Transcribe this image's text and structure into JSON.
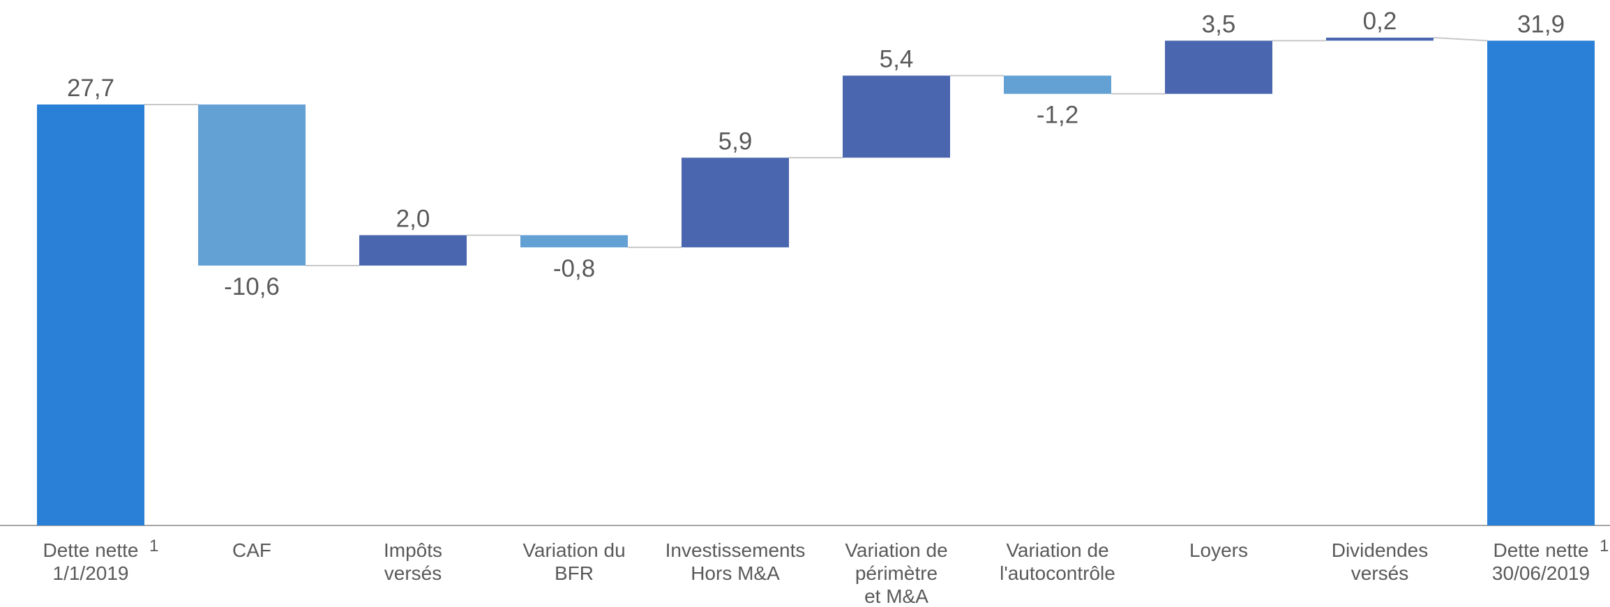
{
  "chart_data": {
    "type": "waterfall",
    "categories": [
      [
        "Dette nette",
        "1/1/2019"
      ],
      [
        "CAF"
      ],
      [
        "Impôts",
        "versés"
      ],
      [
        "Variation du",
        "BFR"
      ],
      [
        "Investissements",
        "Hors M&A"
      ],
      [
        "Variation de",
        "périmètre",
        "et M&A"
      ],
      [
        "Variation de",
        "l'autocontrôle"
      ],
      [
        "Loyers"
      ],
      [
        "Dividendes",
        "versés"
      ],
      [
        "Dette nette",
        "30/06/2019"
      ]
    ],
    "footnote_marks": [
      {
        "index": 0,
        "label": "1"
      },
      {
        "index": 9,
        "label": "1"
      }
    ],
    "kinds": [
      "total",
      "change",
      "change",
      "change",
      "change",
      "change",
      "change",
      "change",
      "change",
      "total"
    ],
    "values": [
      27.7,
      -10.6,
      2.0,
      -0.8,
      5.9,
      5.4,
      -1.2,
      3.5,
      0.2,
      31.9
    ],
    "value_labels": [
      "27,7",
      "-10,6",
      "2,0",
      "-0,8",
      "5,9",
      "5,4",
      "-1,2",
      "3,5",
      "0,2",
      "31,9"
    ],
    "colors": {
      "total": "#2a7fd6",
      "increase": "#4a66ae",
      "decrease": "#63a0d4"
    }
  }
}
